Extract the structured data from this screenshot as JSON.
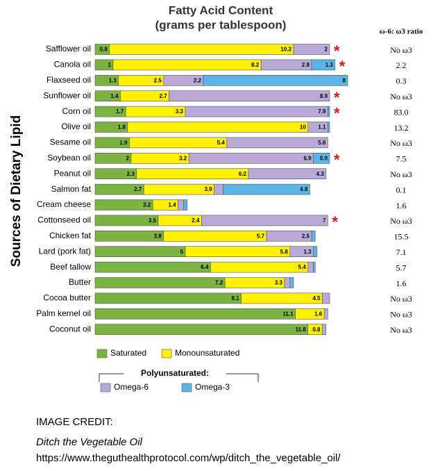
{
  "chart_data": {
    "type": "bar",
    "orientation": "horizontal",
    "stacked": true,
    "title": "Fatty Acid Content",
    "subtitle": "(grams per tablespoon)",
    "y_label": "Sources of Dietary Lipid",
    "categories": [
      "Safflower oil",
      "Canola oil",
      "Flaxseed oil",
      "Sunflower oil",
      "Corn oil",
      "Olive oil",
      "Sesame oil",
      "Soybean oil",
      "Peanut oil",
      "Salmon fat",
      "Cream cheese",
      "Cottonseed oil",
      "Chicken fat",
      "Lard (pork fat)",
      "Beef tallow",
      "Butter",
      "Cocoa butter",
      "Palm kernel oil",
      "Coconut oil"
    ],
    "series": [
      {
        "name": "Saturated",
        "color": "#7cb342",
        "values": [
          0.8,
          1.0,
          1.3,
          1.4,
          1.7,
          1.8,
          1.9,
          2.0,
          2.3,
          2.7,
          3.2,
          3.5,
          3.8,
          5.0,
          6.4,
          7.2,
          8.1,
          11.1,
          11.8
        ]
      },
      {
        "name": "Monounsaturated",
        "color": "#fff200",
        "values": [
          10.2,
          8.2,
          2.5,
          2.7,
          3.3,
          10.0,
          5.4,
          3.2,
          6.2,
          3.9,
          1.4,
          2.4,
          5.7,
          5.8,
          5.4,
          3.3,
          4.5,
          1.6,
          0.8
        ]
      },
      {
        "name": "Omega-6",
        "color": "#b9a9d8",
        "values": [
          2,
          2.8,
          2.2,
          8.9,
          7.9,
          1.1,
          5.6,
          6.9,
          4.3,
          0.5,
          0.3,
          7.0,
          2.5,
          1.3,
          0.3,
          0.3,
          0.4,
          0.2,
          0.2
        ]
      },
      {
        "name": "Omega-3",
        "color": "#5ab4e5",
        "values": [
          0,
          1.3,
          8.0,
          0,
          0.1,
          0.1,
          0,
          0.9,
          0,
          4.8,
          0.2,
          0,
          0.2,
          0.2,
          0.1,
          0.2,
          0,
          0,
          0
        ]
      }
    ],
    "legend_group": "Polyunsaturated:",
    "ratio_header": "ω-6: ω3 ratio",
    "ratios": [
      "No ω3",
      "2.2",
      "0.3",
      "No ω3",
      "83.0",
      "13.2",
      "No ω3",
      "7.5",
      "No ω3",
      "0.1",
      "1.6",
      "No ω3",
      "15.5",
      "7.1",
      "5.7",
      "1.6",
      "No ω3",
      "No ω3",
      "No ω3"
    ],
    "asterisk": "*",
    "starred": [
      true,
      true,
      false,
      true,
      true,
      false,
      false,
      true,
      false,
      false,
      false,
      true,
      false,
      false,
      false,
      false,
      false,
      false,
      false
    ]
  },
  "credit": {
    "label": "IMAGE CREDIT:",
    "source": "Ditch the Vegetable Oil",
    "url": "https://www.theguthealthprotocol.com/wp/ditch_the_vegetable_oil/"
  }
}
